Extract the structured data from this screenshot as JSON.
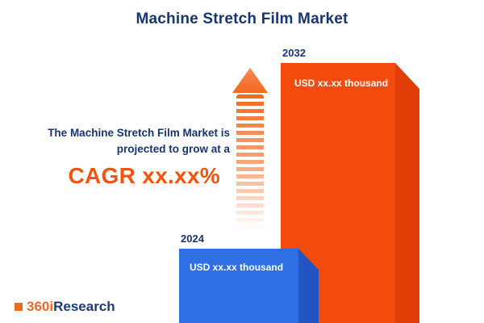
{
  "title": "Machine Stretch Film Market",
  "annotation": {
    "line1": "The Machine Stretch Film Market is",
    "line2": "projected to grow at a",
    "cagr": "CAGR xx.xx%"
  },
  "logo": {
    "part1": "360i",
    "part2": "Research"
  },
  "colors": {
    "navy": "#17356F",
    "orange_bar": "#F44A0C",
    "orange_bar_side": "#E03E06",
    "blue_bar": "#2E6FE4",
    "blue_bar_side": "#2355C2",
    "accent_orange": "#F05510"
  },
  "chart_data": {
    "type": "bar",
    "categories": [
      "2024",
      "2032"
    ],
    "values": [
      null,
      null
    ],
    "value_labels": [
      "USD xx.xx thousand",
      "USD xx.xx thousand"
    ],
    "title": "Machine Stretch Film Market",
    "annotation": "The Machine Stretch Film Market is projected to grow at a CAGR xx.xx%",
    "legend_position": "none",
    "grid": false,
    "bar_colors": [
      "#2E6FE4",
      "#F44A0C"
    ]
  }
}
